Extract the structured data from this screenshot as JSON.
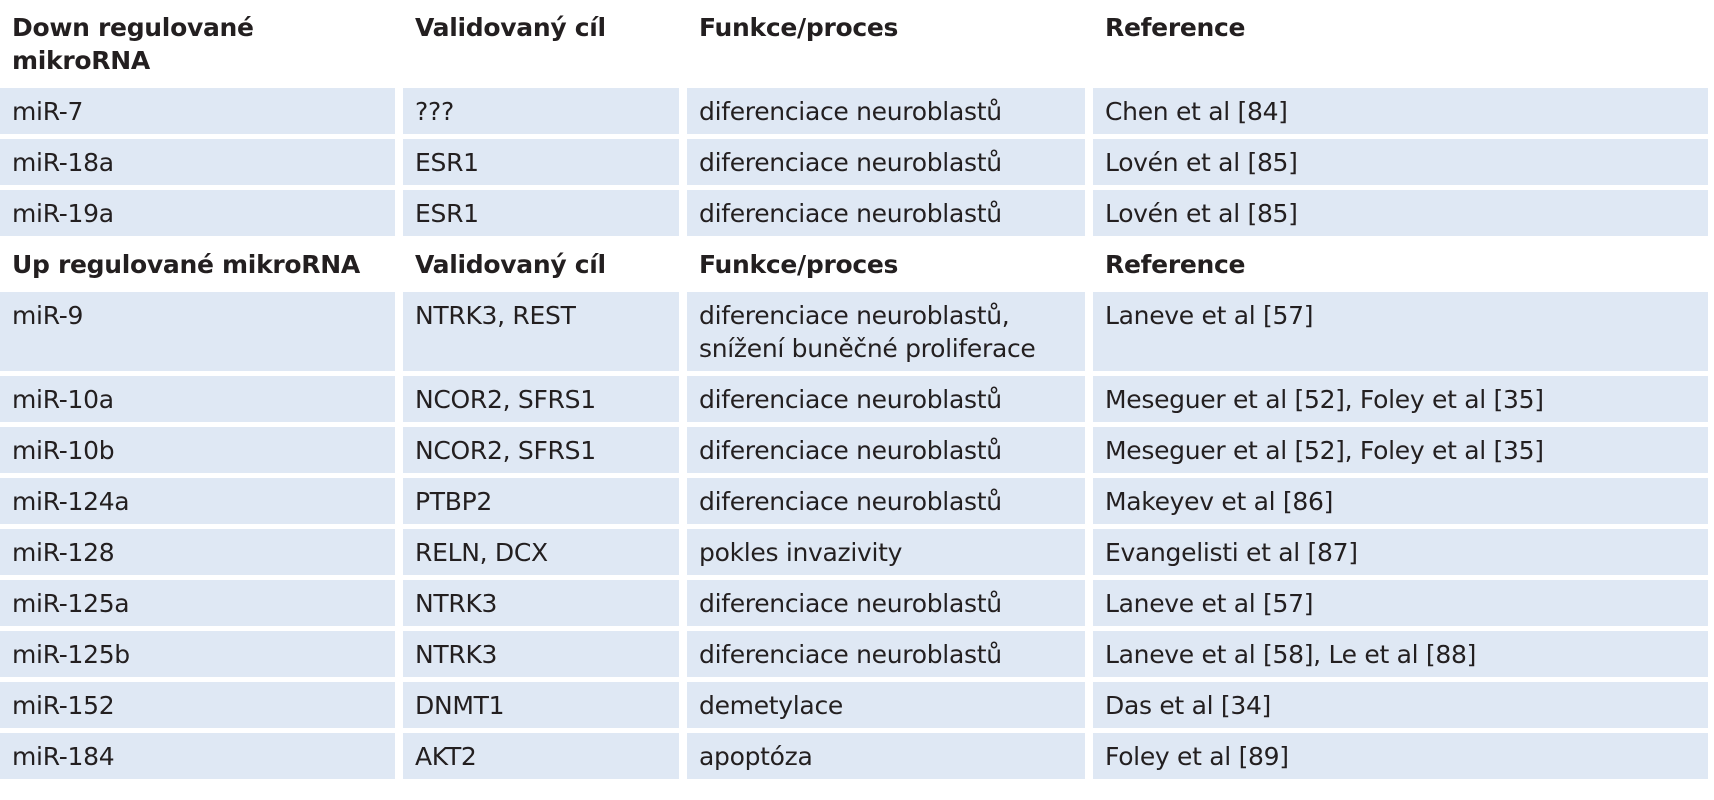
{
  "table": {
    "sections": [
      {
        "header": [
          "Down regulované mikroRNA",
          "Validovaný cíl",
          "Funkce/proces",
          "Reference"
        ],
        "rows": [
          [
            "miR-7",
            "???",
            "diferenciace neuroblastů",
            "Chen et al [84]"
          ],
          [
            "miR-18a",
            "ESR1",
            "diferenciace neuroblastů",
            "Lovén et al [85]"
          ],
          [
            "miR-19a",
            "ESR1",
            "diferenciace neuroblastů",
            "Lovén et al [85]"
          ]
        ]
      },
      {
        "header": [
          "Up regulované mikroRNA",
          "Validovaný cíl",
          "Funkce/proces",
          "Reference"
        ],
        "rows": [
          [
            "miR-9",
            "NTRK3, REST",
            "diferenciace neuroblastů,\nsnížení buněčné proliferace",
            "Laneve et al [57]"
          ],
          [
            "miR-10a",
            "NCOR2, SFRS1",
            "diferenciace neuroblastů",
            "Meseguer et al [52], Foley et al [35]"
          ],
          [
            "miR-10b",
            "NCOR2, SFRS1",
            "diferenciace neuroblastů",
            "Meseguer et al [52], Foley et al [35]"
          ],
          [
            "miR-124a",
            "PTBP2",
            "diferenciace neuroblastů",
            "Makeyev et al [86]"
          ],
          [
            "miR-128",
            "RELN, DCX",
            "pokles invazivity",
            "Evangelisti et al [87]"
          ],
          [
            "miR-125a",
            "NTRK3",
            "diferenciace neuroblastů",
            "Laneve et al [57]"
          ],
          [
            "miR-125b",
            "NTRK3",
            "diferenciace neuroblastů",
            "Laneve et al [58], Le et al [88]"
          ],
          [
            "miR-152",
            "DNMT1",
            "demetylace",
            "Das et al [34]"
          ],
          [
            "miR-184",
            "AKT2",
            "apoptóza",
            "Foley et al [89]"
          ]
        ]
      }
    ]
  }
}
